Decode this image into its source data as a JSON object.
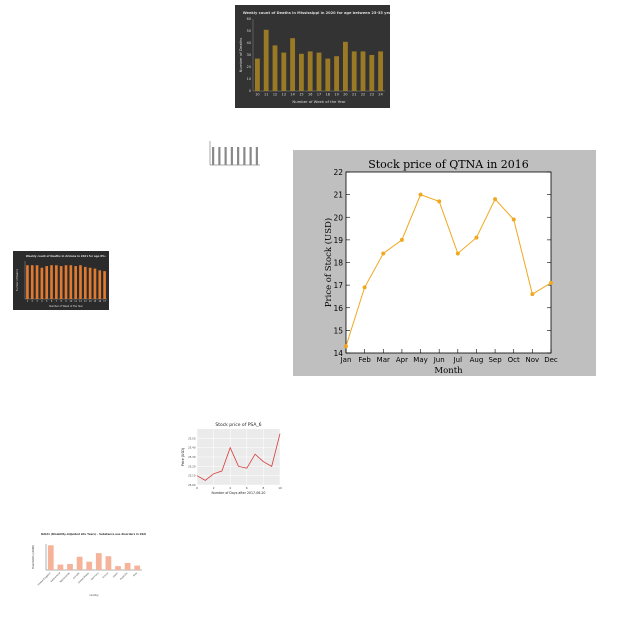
{
  "chart_data": [
    {
      "type": "bar",
      "title": "Weekly count of Deaths in Mississippi in 2020 for age between 25-35 years",
      "xlabel": "Number of Week of the Year",
      "ylabel": "Number of Deaths",
      "categories": [
        "10",
        "11",
        "12",
        "13",
        "14",
        "15",
        "16",
        "17",
        "18",
        "19",
        "20",
        "21",
        "22",
        "23",
        "24"
      ],
      "values": [
        27,
        51,
        38,
        32,
        44,
        31,
        33,
        32,
        27,
        29,
        41,
        33,
        33,
        30,
        33
      ],
      "ylim": [
        0,
        60
      ],
      "yticks": [
        "0",
        "10",
        "20",
        "30",
        "40",
        "50",
        "60"
      ],
      "colors": {
        "bar": "#9a7a24",
        "background": "#333333"
      }
    },
    {
      "type": "bar",
      "title": "",
      "xlabel": "",
      "ylabel": "",
      "categories": [
        "1",
        "2",
        "3",
        "4",
        "5",
        "6",
        "7",
        "8"
      ],
      "values": [
        3,
        3,
        3,
        3,
        3,
        3,
        3,
        3
      ],
      "ylim": [
        0,
        4
      ],
      "colors": {
        "bar": "#888888",
        "background": "#ffffff"
      }
    },
    {
      "type": "line",
      "title": "Stock price of QTNA in 2016",
      "xlabel": "Month",
      "ylabel": "Price of Stock (USD)",
      "categories": [
        "Jan",
        "Feb",
        "Mar",
        "Apr",
        "May",
        "Jun",
        "Jul",
        "Aug",
        "Sep",
        "Oct",
        "Nov",
        "Dec"
      ],
      "values": [
        14.3,
        16.9,
        18.4,
        19.0,
        21.0,
        20.7,
        18.4,
        19.1,
        20.8,
        19.9,
        16.6,
        17.1
      ],
      "ylim": [
        14,
        22
      ],
      "yticks": [
        "14",
        "15",
        "16",
        "17",
        "18",
        "19",
        "20",
        "21",
        "22"
      ],
      "colors": {
        "line": "#f0a820",
        "figure_background": "#bfbfbf",
        "plot_background": "#ffffff"
      }
    },
    {
      "type": "bar",
      "title": "Weekly count of Deaths in Arizona in 2021 for age 85+",
      "xlabel": "Number of Week of the Year",
      "ylabel": "Number of Deaths",
      "categories": [
        "1",
        "2",
        "3",
        "4",
        "5",
        "6",
        "7",
        "8",
        "9",
        "10",
        "11",
        "12",
        "13",
        "14",
        "15",
        "16",
        "17"
      ],
      "values": [
        40,
        40,
        40,
        37,
        39,
        40,
        40,
        39,
        40,
        40,
        39,
        40,
        38,
        37,
        36,
        34,
        33
      ],
      "ylim": [
        0,
        45
      ],
      "colors": {
        "bar": "#e07a30",
        "background": "#2b2b2b"
      }
    },
    {
      "type": "line",
      "title": "Stock price of PSA_6",
      "xlabel": "Number of Days after 2017-06-20",
      "ylabel": "Price (USD)",
      "x": [
        0,
        1,
        2,
        3,
        4,
        5,
        6,
        7,
        8,
        9,
        10
      ],
      "values": [
        25.1,
        25.05,
        25.12,
        25.15,
        25.4,
        25.2,
        25.18,
        25.33,
        25.25,
        25.2,
        25.55
      ],
      "ylim": [
        25.0,
        25.6
      ],
      "yticks": [
        "25.00",
        "25.10",
        "25.20",
        "25.30",
        "25.40",
        "25.50"
      ],
      "xticks": [
        "0",
        "2",
        "4",
        "6",
        "8",
        "10"
      ],
      "colors": {
        "line": "#d93a3a",
        "plot_background": "#ebebeb"
      }
    },
    {
      "type": "bar",
      "title": "DALYs (Disability-Adjusted Life Years) - Substance use disorders in 2020",
      "xlabel": "country",
      "ylabel": "Total DALYs (x1000)",
      "categories": [
        "United Kingdom",
        "Switzerland",
        "Netherlands",
        "Canada",
        "United States",
        "Germany",
        "France",
        "Japan",
        "Australia",
        "Italy"
      ],
      "values": [
        950,
        210,
        230,
        510,
        320,
        650,
        530,
        150,
        270,
        170
      ],
      "ylim": [
        0,
        1000
      ],
      "colors": {
        "bar": "#f5b49a",
        "background": "#ffffff"
      }
    }
  ]
}
